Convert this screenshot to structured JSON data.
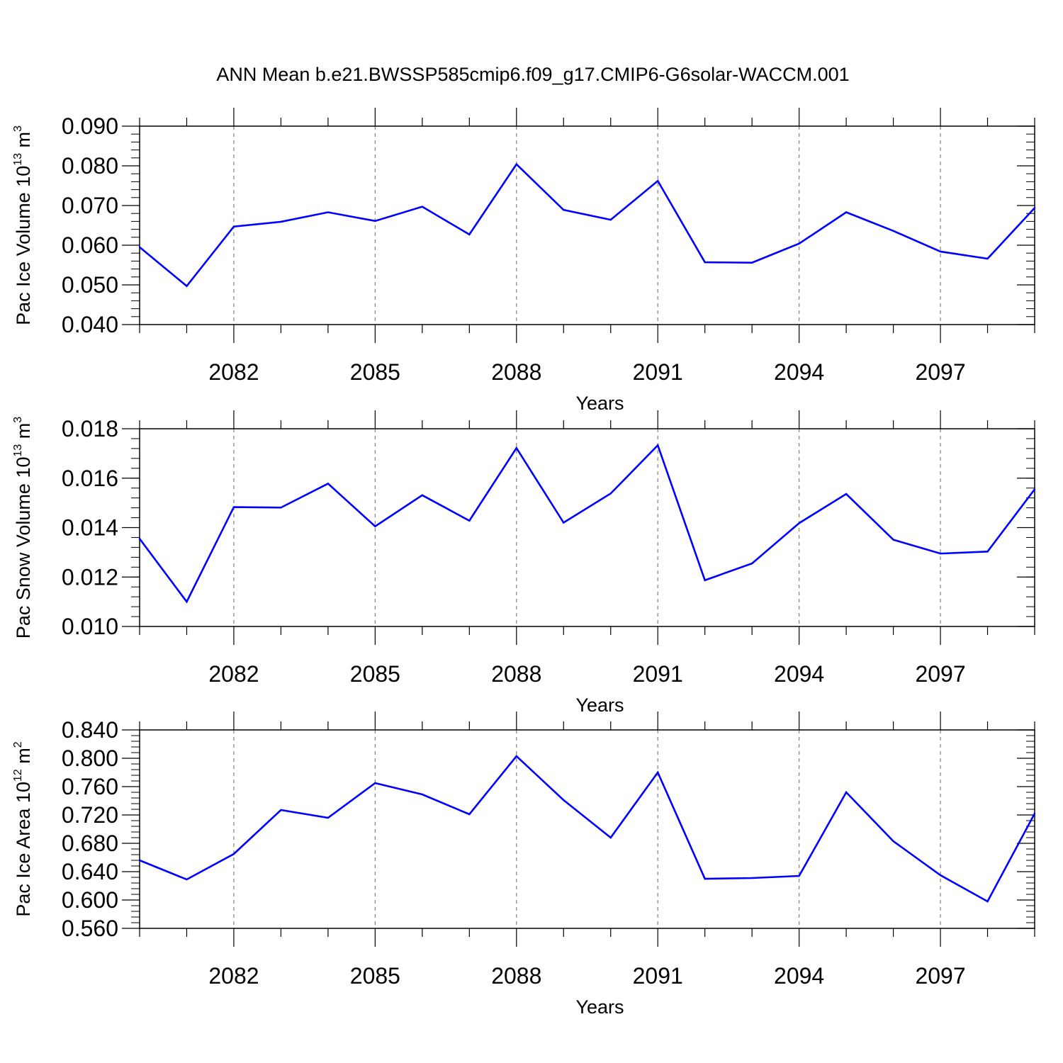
{
  "title": "ANN Mean b.e21.BWSSP585cmip6.f09_g17.CMIP6-G6solar-WACCM.001",
  "line_color": "#0000ff",
  "chart_data": [
    {
      "type": "line",
      "title": "",
      "xlabel": "Years",
      "ylabel": {
        "text": "Pac Ice Volume 10",
        "exp": "13",
        "unit": " m",
        "unit_exp": "3"
      },
      "xlim": [
        2080,
        2099
      ],
      "ylim": [
        0.04,
        0.09
      ],
      "x_ticks": [
        2082,
        2085,
        2088,
        2091,
        2094,
        2097
      ],
      "x_tick_labels": [
        "2082",
        "2085",
        "2088",
        "2091",
        "2094",
        "2097"
      ],
      "y_ticks": [
        0.04,
        0.05,
        0.06,
        0.07,
        0.08,
        0.09
      ],
      "y_tick_labels": [
        "0.040",
        "0.050",
        "0.060",
        "0.070",
        "0.080",
        "0.090"
      ],
      "y_minor_step": 0.002,
      "grid": "vertical dashed at labeled years",
      "x": [
        2080,
        2081,
        2082,
        2083,
        2084,
        2085,
        2086,
        2087,
        2088,
        2089,
        2090,
        2091,
        2092,
        2093,
        2094,
        2095,
        2096,
        2097,
        2098,
        2099
      ],
      "series": [
        {
          "values": [
            0.0595,
            0.0497,
            0.0647,
            0.0659,
            0.0683,
            0.0661,
            0.0697,
            0.0627,
            0.0804,
            0.0689,
            0.0664,
            0.0762,
            0.0557,
            0.0556,
            0.0604,
            0.0683,
            0.0636,
            0.0584,
            0.0566,
            0.0694
          ]
        }
      ]
    },
    {
      "type": "line",
      "title": "",
      "xlabel": "Years",
      "ylabel": {
        "text": "Pac Snow Volume 10",
        "exp": "13",
        "unit": " m",
        "unit_exp": "3"
      },
      "xlim": [
        2080,
        2099
      ],
      "ylim": [
        0.01,
        0.018
      ],
      "x_ticks": [
        2082,
        2085,
        2088,
        2091,
        2094,
        2097
      ],
      "x_tick_labels": [
        "2082",
        "2085",
        "2088",
        "2091",
        "2094",
        "2097"
      ],
      "y_ticks": [
        0.01,
        0.012,
        0.014,
        0.016,
        0.018
      ],
      "y_tick_labels": [
        "0.010",
        "0.012",
        "0.014",
        "0.016",
        "0.018"
      ],
      "y_minor_step": 0.0004,
      "grid": "vertical dashed at labeled years",
      "x": [
        2080,
        2081,
        2082,
        2083,
        2084,
        2085,
        2086,
        2087,
        2088,
        2089,
        2090,
        2091,
        2092,
        2093,
        2094,
        2095,
        2096,
        2097,
        2098,
        2099
      ],
      "series": [
        {
          "values": [
            0.01355,
            0.011,
            0.01483,
            0.01481,
            0.01578,
            0.01405,
            0.01531,
            0.01428,
            0.01722,
            0.0142,
            0.01538,
            0.01733,
            0.01187,
            0.01255,
            0.01418,
            0.01536,
            0.01351,
            0.01295,
            0.01303,
            0.01555
          ]
        }
      ]
    },
    {
      "type": "line",
      "title": "",
      "xlabel": "Years",
      "ylabel": {
        "text": "Pac Ice Area 10",
        "exp": "12",
        "unit": " m",
        "unit_exp": "2"
      },
      "xlim": [
        2080,
        2099
      ],
      "ylim": [
        0.56,
        0.84
      ],
      "x_ticks": [
        2082,
        2085,
        2088,
        2091,
        2094,
        2097
      ],
      "x_tick_labels": [
        "2082",
        "2085",
        "2088",
        "2091",
        "2094",
        "2097"
      ],
      "y_ticks": [
        0.56,
        0.6,
        0.64,
        0.68,
        0.72,
        0.76,
        0.8,
        0.84
      ],
      "y_tick_labels": [
        "0.560",
        "0.600",
        "0.640",
        "0.680",
        "0.720",
        "0.760",
        "0.800",
        "0.840"
      ],
      "y_minor_step": 0.008,
      "grid": "vertical dashed at labeled years",
      "x": [
        2080,
        2081,
        2082,
        2083,
        2084,
        2085,
        2086,
        2087,
        2088,
        2089,
        2090,
        2091,
        2092,
        2093,
        2094,
        2095,
        2096,
        2097,
        2098,
        2099
      ],
      "series": [
        {
          "values": [
            0.656,
            0.629,
            0.665,
            0.727,
            0.716,
            0.765,
            0.749,
            0.721,
            0.803,
            0.741,
            0.688,
            0.78,
            0.63,
            0.631,
            0.634,
            0.752,
            0.683,
            0.635,
            0.598,
            0.722
          ]
        }
      ]
    }
  ]
}
